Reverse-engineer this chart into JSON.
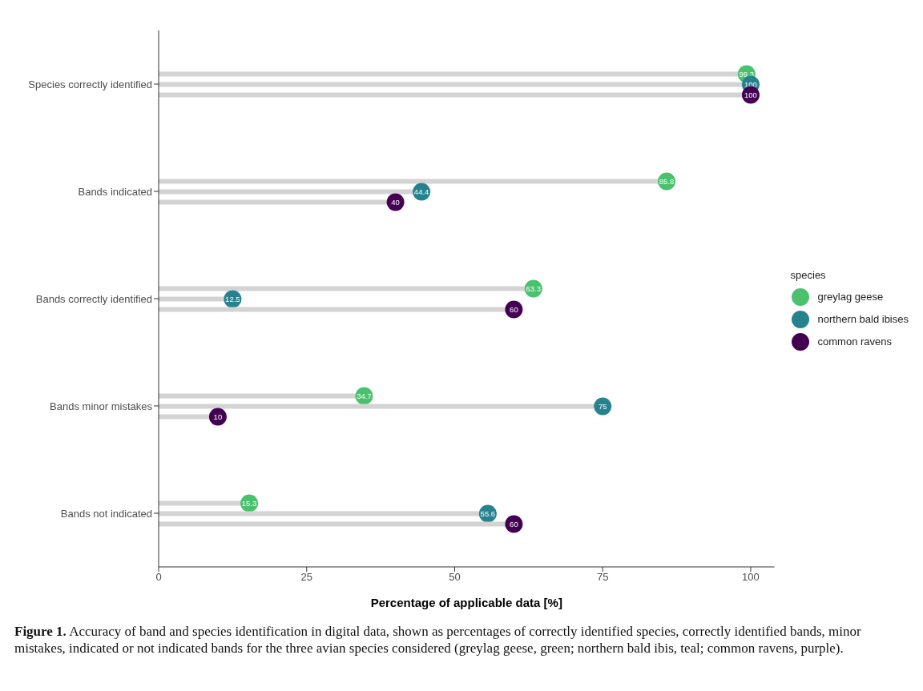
{
  "chart_data": {
    "type": "lollipop",
    "orientation": "horizontal",
    "xlabel": "Percentage of applicable data [%]",
    "legend_title": "species",
    "legend": "right",
    "marker": "circle",
    "data_labels": true,
    "categories": [
      "Species correctly identified",
      "Bands indicated",
      "Bands correctly identified",
      "Bands minor mistakes",
      "Bands not indicated"
    ],
    "xlim": [
      0,
      104
    ],
    "xticks": [
      0,
      25,
      50,
      75,
      100
    ],
    "series": [
      {
        "name": "greylag geese",
        "color": "#4ac16d",
        "values": [
          99.3,
          85.8,
          63.3,
          34.7,
          15.3
        ]
      },
      {
        "name": "northern bald ibises",
        "color": "#26828e",
        "values": [
          100,
          44.4,
          12.5,
          75,
          55.6
        ]
      },
      {
        "name": "common ravens",
        "color": "#440154",
        "values": [
          100,
          40,
          60,
          10,
          60
        ]
      }
    ],
    "annotations": [
      "Figure 1. Accuracy of band and species identification in digital data, shown as percentages of correctly identified species, correctly identified bands, minor mistakes, indicated or not indicated bands for the three avian species considered (greylag geese, green; northern bald ibis, teal; common ravens, purple)."
    ]
  }
}
